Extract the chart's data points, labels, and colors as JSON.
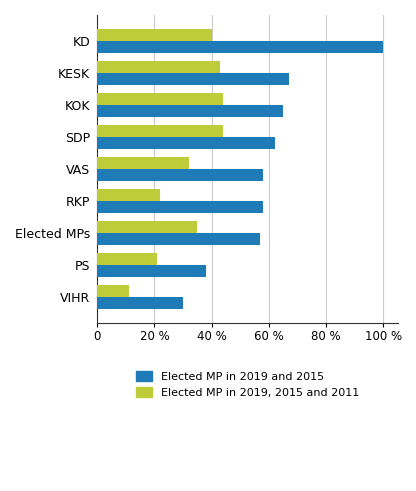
{
  "categories": [
    "KD",
    "KESK",
    "KOK",
    "SDP",
    "VAS",
    "RKP",
    "Elected MPs",
    "PS",
    "VIHR"
  ],
  "blue_values": [
    100,
    67,
    65,
    62,
    58,
    58,
    57,
    38,
    30
  ],
  "green_values": [
    40,
    43,
    44,
    44,
    32,
    22,
    35,
    21,
    11
  ],
  "blue_color": "#1F7BB8",
  "green_color": "#BFCC3A",
  "blue_label": "Elected MP in 2019 and 2015",
  "green_label": "Elected MP in 2019, 2015 and 2011",
  "xlim": [
    0,
    105
  ],
  "xticks": [
    0,
    20,
    40,
    60,
    80,
    100
  ],
  "xtick_labels": [
    "0",
    "20 %",
    "40 %",
    "60 %",
    "80 %",
    "100 %"
  ],
  "background_color": "#ffffff",
  "grid_color": "#cccccc",
  "bar_height": 0.38,
  "figsize": [
    4.16,
    4.91
  ],
  "dpi": 100
}
